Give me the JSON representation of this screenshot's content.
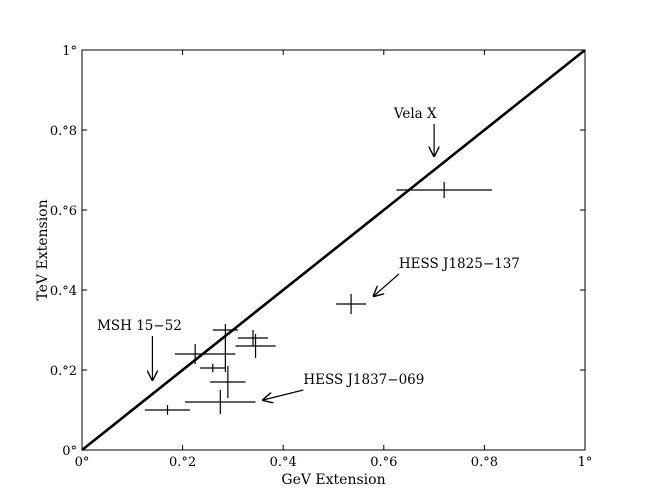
{
  "chart_data": {
    "type": "scatter",
    "title": "",
    "xlabel": "GeV Extension",
    "ylabel": "TeV Extension",
    "xlim": [
      0,
      1
    ],
    "ylim": [
      0,
      1
    ],
    "grid": false,
    "x_ticks": [
      {
        "value": 0,
        "label": "0°"
      },
      {
        "value": 0.2,
        "label": "0.°2"
      },
      {
        "value": 0.4,
        "label": "0.°4"
      },
      {
        "value": 0.6,
        "label": "0.°6"
      },
      {
        "value": 0.8,
        "label": "0.°8"
      },
      {
        "value": 1,
        "label": "1°"
      }
    ],
    "y_ticks": [
      {
        "value": 0,
        "label": "0°"
      },
      {
        "value": 0.2,
        "label": "0.°2"
      },
      {
        "value": 0.4,
        "label": "0.°4"
      },
      {
        "value": 0.6,
        "label": "0.°6"
      },
      {
        "value": 0.8,
        "label": "0.°8"
      },
      {
        "value": 1,
        "label": "1°"
      }
    ],
    "reference_line": {
      "kind": "y=x",
      "from": [
        0,
        0
      ],
      "to": [
        1,
        1
      ]
    },
    "points": [
      {
        "x": 0.72,
        "y": 0.65,
        "xerr": [
          0.095,
          0.095
        ],
        "yerr": [
          0.02,
          0.02
        ]
      },
      {
        "x": 0.535,
        "y": 0.365,
        "xerr": [
          0.03,
          0.03
        ],
        "yerr": [
          0.025,
          0.025
        ]
      },
      {
        "x": 0.285,
        "y": 0.3,
        "xerr": [
          0.025,
          0.025
        ],
        "yerr": [
          0.015,
          0.015
        ]
      },
      {
        "x": 0.34,
        "y": 0.28,
        "xerr": [
          0.03,
          0.03
        ],
        "yerr": [
          0.02,
          0.02
        ]
      },
      {
        "x": 0.345,
        "y": 0.26,
        "xerr": [
          0.04,
          0.04
        ],
        "yerr": [
          0.03,
          0.03
        ]
      },
      {
        "x": 0.225,
        "y": 0.24,
        "xerr": [
          0.04,
          0.04
        ],
        "yerr": [
          0.025,
          0.025
        ]
      },
      {
        "x": 0.285,
        "y": 0.24,
        "xerr": [
          0.02,
          0.02
        ],
        "yerr": [
          0.045,
          0.045
        ]
      },
      {
        "x": 0.26,
        "y": 0.205,
        "xerr": [
          0.025,
          0.025
        ],
        "yerr": [
          0.01,
          0.01
        ]
      },
      {
        "x": 0.29,
        "y": 0.17,
        "xerr": [
          0.035,
          0.035
        ],
        "yerr": [
          0.04,
          0.04
        ]
      },
      {
        "x": 0.275,
        "y": 0.12,
        "xerr": [
          0.07,
          0.07
        ],
        "yerr": [
          0.03,
          0.03
        ]
      },
      {
        "x": 0.17,
        "y": 0.1,
        "xerr": [
          0.045,
          0.045
        ],
        "yerr": [
          0.012,
          0.012
        ]
      }
    ],
    "annotations": [
      {
        "text": "Vela X",
        "text_x": 0.62,
        "text_y": 0.83,
        "arrow_to": [
          0.7,
          0.735
        ]
      },
      {
        "text": "HESS J1825−137",
        "text_x": 0.63,
        "text_y": 0.455,
        "arrow_to": [
          0.58,
          0.385
        ]
      },
      {
        "text": "MSH 15−52",
        "text_x": 0.03,
        "text_y": 0.3,
        "arrow_to": [
          0.14,
          0.175
        ]
      },
      {
        "text": "HESS J1837−069",
        "text_x": 0.44,
        "text_y": 0.165,
        "arrow_to": [
          0.36,
          0.125
        ]
      }
    ]
  }
}
